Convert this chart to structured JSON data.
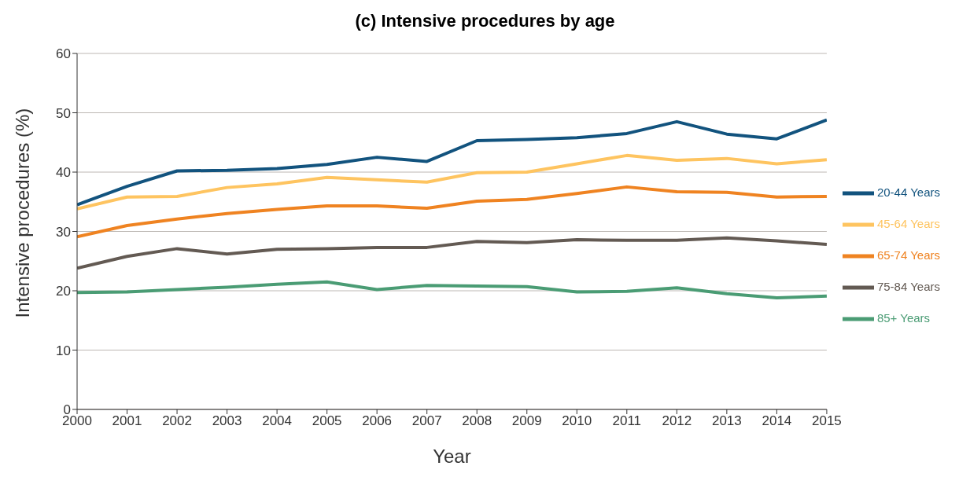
{
  "chart_data": {
    "type": "line",
    "title": "(c) Intensive procedures by age",
    "xlabel": "Year",
    "ylabel": "Intensive procedures (%)",
    "x": [
      2000,
      2001,
      2002,
      2003,
      2004,
      2005,
      2006,
      2007,
      2008,
      2009,
      2010,
      2011,
      2012,
      2013,
      2014,
      2015
    ],
    "xlim": [
      2000,
      2015
    ],
    "xticks": [
      2000,
      2001,
      2002,
      2003,
      2004,
      2005,
      2006,
      2007,
      2008,
      2009,
      2010,
      2011,
      2012,
      2013,
      2014,
      2015
    ],
    "ylim": [
      0,
      60
    ],
    "yticks": [
      0,
      10,
      20,
      30,
      40,
      50,
      60
    ],
    "grid": "y",
    "legend": "right",
    "marker": "none",
    "line_style": "solid",
    "series": [
      {
        "name": "20-44 Years",
        "color": "#12537e",
        "values": [
          34.5,
          37.6,
          40.2,
          40.3,
          40.6,
          41.3,
          42.5,
          41.8,
          45.3,
          45.5,
          45.8,
          46.5,
          48.5,
          46.4,
          45.6,
          48.8
        ]
      },
      {
        "name": "45-64 Years",
        "color": "#fec460",
        "values": [
          33.8,
          35.8,
          35.9,
          37.4,
          38.0,
          39.1,
          38.7,
          38.3,
          39.9,
          40.0,
          41.4,
          42.8,
          42.0,
          42.3,
          41.4,
          42.1
        ]
      },
      {
        "name": "65-74 Years",
        "color": "#ef8321",
        "values": [
          29.1,
          31.0,
          32.1,
          33.0,
          33.7,
          34.3,
          34.3,
          33.9,
          35.1,
          35.4,
          36.4,
          37.5,
          36.7,
          36.6,
          35.8,
          35.9
        ]
      },
      {
        "name": "75-84 Years",
        "color": "#635a53",
        "values": [
          23.8,
          25.8,
          27.1,
          26.2,
          27.0,
          27.1,
          27.3,
          27.3,
          28.3,
          28.1,
          28.6,
          28.5,
          28.5,
          28.9,
          28.4,
          27.8
        ]
      },
      {
        "name": "85+ Years",
        "color": "#4a9c74",
        "values": [
          19.7,
          19.8,
          20.2,
          20.6,
          21.1,
          21.5,
          20.2,
          20.9,
          20.8,
          20.7,
          19.8,
          19.9,
          20.5,
          19.5,
          18.8,
          19.1
        ]
      }
    ]
  }
}
